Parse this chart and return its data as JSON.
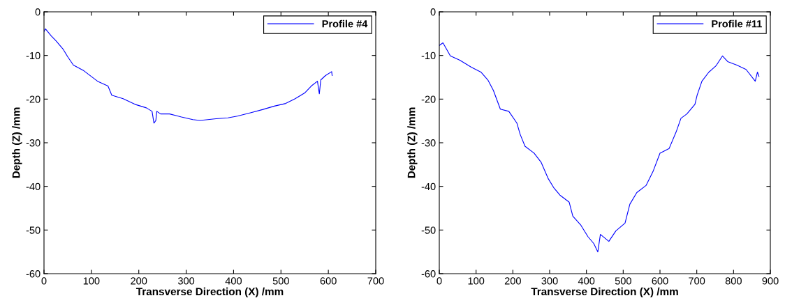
{
  "chart_data": [
    {
      "type": "line",
      "xlabel": "Transverse Direction (X) /mm",
      "ylabel": "Depth (Z) /mm",
      "xlim": [
        0,
        700
      ],
      "xticks": [
        0,
        100,
        200,
        300,
        400,
        500,
        600,
        700
      ],
      "ylim": [
        -60,
        0
      ],
      "yticks": [
        -60,
        -50,
        -40,
        -30,
        -20,
        -10,
        0
      ],
      "grid": false,
      "legend": "top right",
      "marker": "none",
      "line_style": "solid",
      "series": [
        {
          "name": "Profile #4",
          "color": "#0000ff",
          "x": [
            0,
            3,
            15,
            25,
            40,
            50,
            62,
            84,
            113,
            135,
            143,
            167,
            192,
            216,
            228,
            232,
            236,
            238,
            246,
            265,
            290,
            314,
            329,
            363,
            388,
            408,
            437,
            461,
            486,
            510,
            530,
            550,
            564,
            577,
            581,
            584,
            594,
            607,
            608
          ],
          "values": [
            -4.5,
            -3.9,
            -5.5,
            -6.6,
            -8.5,
            -10.3,
            -12.2,
            -13.5,
            -15.9,
            -17,
            -19.1,
            -19.9,
            -21.2,
            -22,
            -22.8,
            -25.5,
            -24.9,
            -22.8,
            -23.4,
            -23.4,
            -24.1,
            -24.7,
            -24.9,
            -24.5,
            -24.3,
            -23.9,
            -23.1,
            -22.4,
            -21.6,
            -21,
            -19.9,
            -18.6,
            -17,
            -15.9,
            -18.8,
            -15.6,
            -14.6,
            -13.7,
            -14.6
          ]
        }
      ]
    },
    {
      "type": "line",
      "xlabel": "Transverse Direction (X) /mm",
      "ylabel": "Depth (Z) /mm",
      "xlim": [
        0,
        900
      ],
      "xticks": [
        0,
        100,
        200,
        300,
        400,
        500,
        600,
        700,
        800,
        900
      ],
      "ylim": [
        -60,
        0
      ],
      "yticks": [
        -60,
        -50,
        -40,
        -30,
        -20,
        -10,
        0
      ],
      "grid": false,
      "legend": "top right",
      "marker": "none",
      "line_style": "solid",
      "series": [
        {
          "name": "Profile #11",
          "color": "#0000ff",
          "x": [
            0,
            10,
            30,
            56,
            87,
            113,
            132,
            147,
            166,
            189,
            211,
            220,
            233,
            258,
            277,
            296,
            312,
            328,
            353,
            363,
            385,
            404,
            420,
            431,
            438,
            461,
            480,
            505,
            518,
            537,
            562,
            581,
            600,
            625,
            644,
            657,
            673,
            695,
            701,
            714,
            733,
            752,
            770,
            784,
            809,
            834,
            859,
            865,
            869
          ],
          "values": [
            -7.7,
            -7.1,
            -10.1,
            -11.1,
            -12.7,
            -13.8,
            -15.6,
            -18,
            -22.3,
            -22.8,
            -25.5,
            -28.1,
            -30.8,
            -32.4,
            -34.5,
            -38.2,
            -40.4,
            -42,
            -43.6,
            -46.8,
            -48.9,
            -51.5,
            -53.1,
            -55,
            -51,
            -52.6,
            -50.2,
            -48.4,
            -44.1,
            -41.4,
            -39.8,
            -36.6,
            -32.4,
            -31.3,
            -27.5,
            -24.4,
            -23.4,
            -21.2,
            -19.1,
            -15.9,
            -13.8,
            -12.4,
            -10.1,
            -11.4,
            -12.2,
            -13.2,
            -15.9,
            -13.8,
            -14.8
          ]
        }
      ]
    }
  ]
}
